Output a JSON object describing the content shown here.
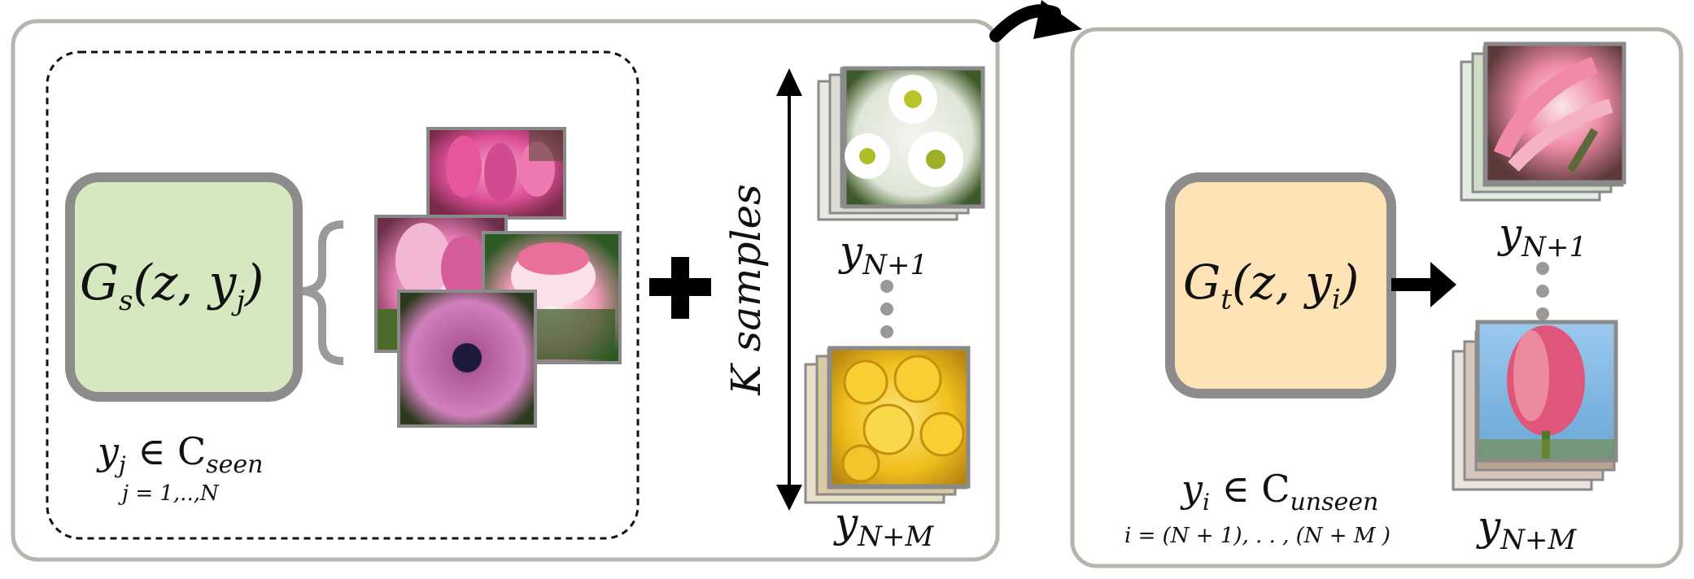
{
  "left_panel": {
    "generator_label": "G",
    "generator_sub": "s",
    "generator_args": "(z, y",
    "generator_args_sub": "j",
    "generator_close": ")",
    "seen_var": "y",
    "seen_var_sub": "j",
    "seen_rel": "∈ C",
    "seen_set_sub": "seen",
    "seen_index": "j = 1,..,N",
    "plus_sign": "+",
    "k_samples_label": "K samples",
    "top_label_var": "y",
    "top_label_sub": "N+1",
    "bottom_label_var": "y",
    "bottom_label_sub": "N+M"
  },
  "right_panel": {
    "generator_label": "G",
    "generator_sub": "t",
    "generator_args": "(z, y",
    "generator_args_sub": "i",
    "generator_close": ")",
    "unseen_var": "y",
    "unseen_var_sub": "i",
    "unseen_rel": "∈ C",
    "unseen_set_sub": "unseen",
    "unseen_index": "i = (N + 1), . . , (N + M )",
    "top_label_var": "y",
    "top_label_sub": "N+1",
    "bottom_label_var": "y",
    "bottom_label_sub": "N+M"
  },
  "colors": {
    "panel_border": "#b8b3ad",
    "gen_border": "#8c8c8c",
    "gen_seen_fill": "#d6e8bf",
    "gen_unseen_fill": "#fde3b6",
    "photo_frame": "#8a8a8a",
    "tulip_pink": "#e0559a",
    "daisy_green": "#4a6a30",
    "rose_yellow": "#f0c21a",
    "sky_blue": "#8ec3ea"
  },
  "icons": [
    "transfer-arrow-icon",
    "right-arrow-icon",
    "double-arrow-icon",
    "plus-icon"
  ]
}
